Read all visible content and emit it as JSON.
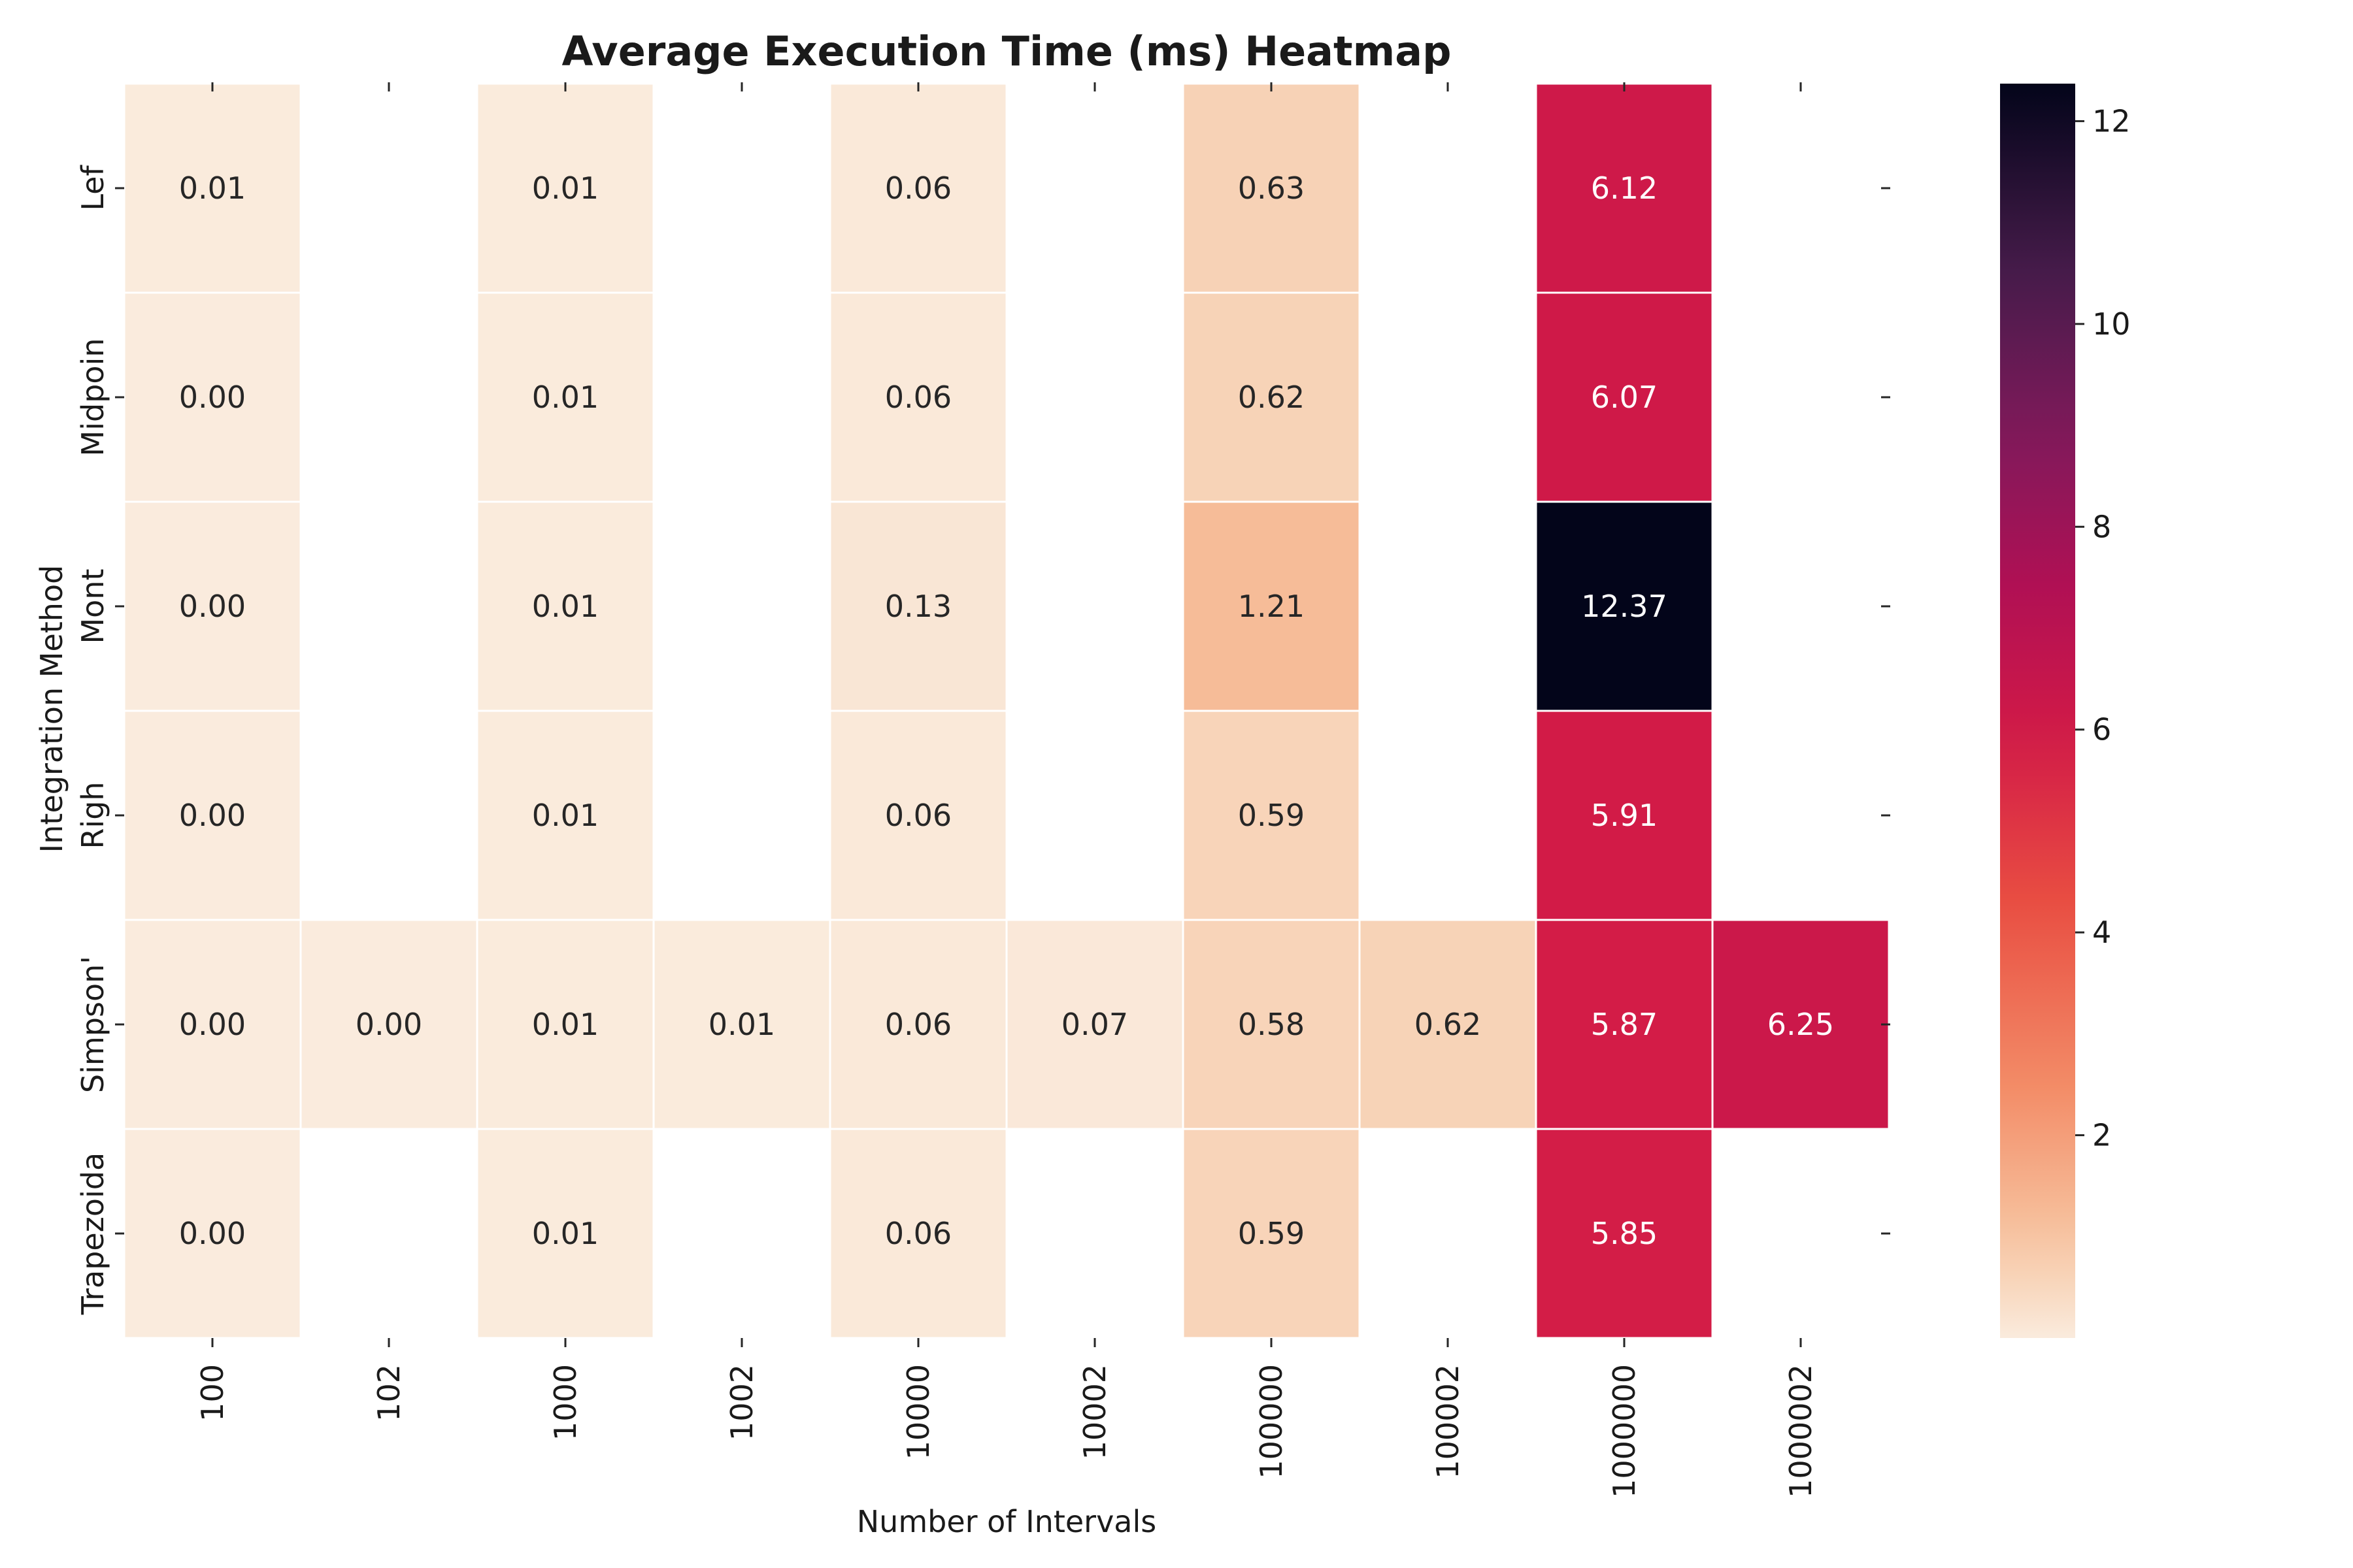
{
  "chart_data": {
    "type": "heatmap",
    "title": "Average Execution Time (ms) Heatmap",
    "xlabel": "Number of Intervals",
    "ylabel": "Integration Method",
    "x_categories": [
      "100",
      "102",
      "1000",
      "1002",
      "10000",
      "10002",
      "100000",
      "100002",
      "1000000",
      "1000002"
    ],
    "y_categories": [
      "Lef",
      "Midpoin",
      "Mont",
      "Righ",
      "Simpson'",
      "Trapezoida"
    ],
    "values": [
      [
        0.01,
        null,
        0.01,
        null,
        0.06,
        null,
        0.63,
        null,
        6.12,
        null
      ],
      [
        0.0,
        null,
        0.01,
        null,
        0.06,
        null,
        0.62,
        null,
        6.07,
        null
      ],
      [
        0.0,
        null,
        0.01,
        null,
        0.13,
        null,
        1.21,
        null,
        12.37,
        null
      ],
      [
        0.0,
        null,
        0.01,
        null,
        0.06,
        null,
        0.59,
        null,
        5.91,
        null
      ],
      [
        0.0,
        0.0,
        0.01,
        0.01,
        0.06,
        0.07,
        0.58,
        0.62,
        5.87,
        6.25
      ],
      [
        0.0,
        null,
        0.01,
        null,
        0.06,
        null,
        0.59,
        null,
        5.85,
        null
      ]
    ],
    "value_format": "2 decimals",
    "colorbar": {
      "colormap": "rocket_r",
      "range": [
        0,
        12.37
      ],
      "ticks": [
        2,
        4,
        6,
        8,
        10,
        12
      ]
    },
    "grid": false,
    "legend": "colorbar-right"
  }
}
